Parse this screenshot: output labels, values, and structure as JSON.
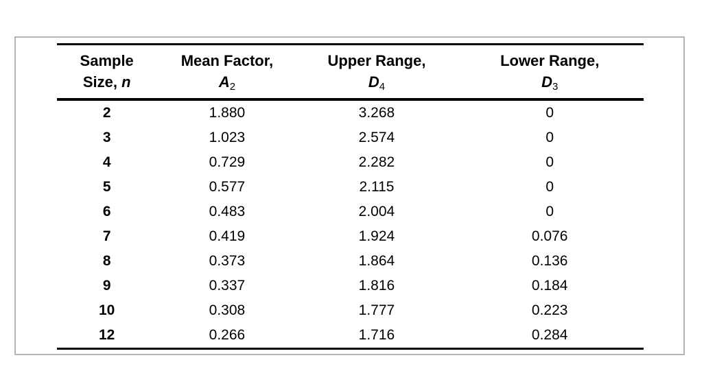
{
  "colors": {
    "background": "#ffffff",
    "frame_border": "#b4b4b4",
    "rule": "#000000",
    "text": "#000000"
  },
  "table": {
    "header": {
      "col1": {
        "line1": "Sample",
        "line2": "Size,",
        "var": "n"
      },
      "col2": {
        "line1": "Mean Factor,",
        "var": "A",
        "sub": "2"
      },
      "col3": {
        "line1": "Upper Range,",
        "var": "D",
        "sub": "4"
      },
      "col4": {
        "line1": "Lower Range,",
        "var": "D",
        "sub": "3"
      }
    },
    "rows": [
      [
        "2",
        "1.880",
        "3.268",
        "0"
      ],
      [
        "3",
        "1.023",
        "2.574",
        "0"
      ],
      [
        "4",
        "0.729",
        "2.282",
        "0"
      ],
      [
        "5",
        "0.577",
        "2.115",
        "0"
      ],
      [
        "6",
        "0.483",
        "2.004",
        "0"
      ],
      [
        "7",
        "0.419",
        "1.924",
        "0.076"
      ],
      [
        "8",
        "0.373",
        "1.864",
        "0.136"
      ],
      [
        "9",
        "0.337",
        "1.816",
        "0.184"
      ],
      [
        "10",
        "0.308",
        "1.777",
        "0.223"
      ],
      [
        "12",
        "0.266",
        "1.716",
        "0.284"
      ]
    ]
  }
}
